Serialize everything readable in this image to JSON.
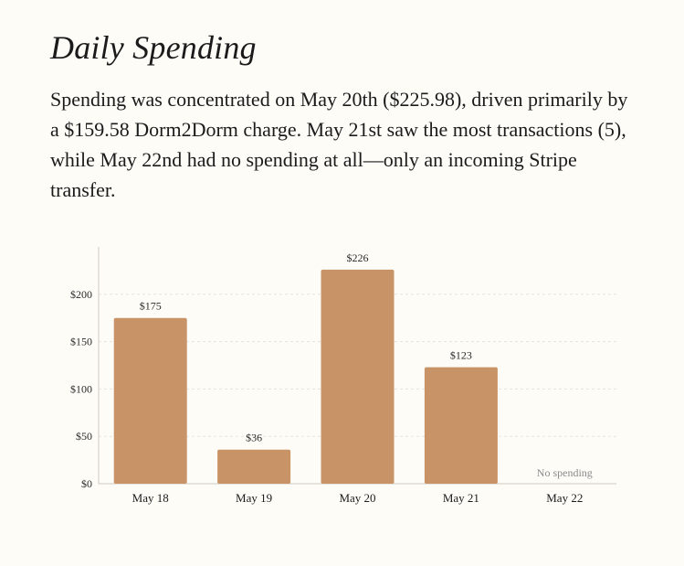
{
  "header": {
    "title": "Daily Spending",
    "summary": "Spending was concentrated on May 20th ($225.98), driven primarily by a $159.58 Dorm2Dorm charge. May 21st saw the most transactions (5), while May 22nd had no spending at all—only an incoming Stripe transfer."
  },
  "colors": {
    "bar": "#c89366",
    "grid": "#e6e3dc",
    "axis": "#cfcac0",
    "background": "#fdfcf7"
  },
  "chart_data": {
    "type": "bar",
    "title": "",
    "xlabel": "",
    "ylabel": "",
    "categories": [
      "May 18",
      "May 19",
      "May 20",
      "May 21",
      "May 22"
    ],
    "values": [
      175,
      36,
      226,
      123,
      0
    ],
    "data_labels": [
      "$175",
      "$36",
      "$226",
      "$123",
      "No spending"
    ],
    "ylim": [
      0,
      250
    ],
    "y_ticks": [
      0,
      50,
      100,
      150,
      200
    ],
    "y_tick_labels": [
      "$0",
      "$50",
      "$100",
      "$150",
      "$200"
    ],
    "grid": true,
    "legend": "none"
  }
}
